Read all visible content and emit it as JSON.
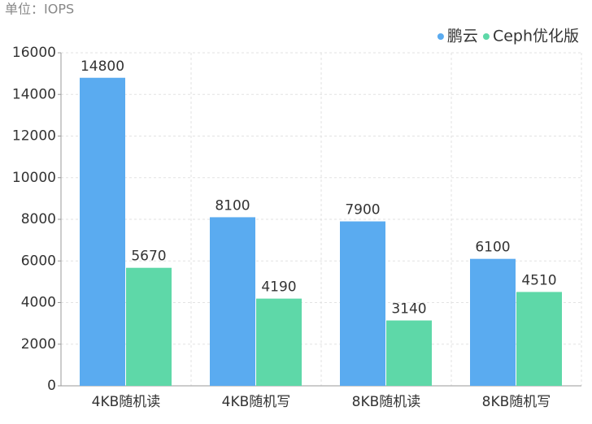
{
  "chart_data": {
    "type": "bar",
    "unit_label": "单位：IOPS",
    "categories": [
      "4KB随机读",
      "4KB随机写",
      "8KB随机读",
      "8KB随机写"
    ],
    "series": [
      {
        "name": "鹏云",
        "color": "#5aabf0",
        "values": [
          14800,
          8100,
          7900,
          6100
        ]
      },
      {
        "name": "Ceph优化版",
        "color": "#5ed8a8",
        "values": [
          5670,
          4190,
          3140,
          4510
        ]
      }
    ],
    "ylim": [
      0,
      16000
    ],
    "yticks": [
      0,
      2000,
      4000,
      6000,
      8000,
      10000,
      12000,
      14000,
      16000
    ],
    "grid": true,
    "legend": "top-right"
  }
}
